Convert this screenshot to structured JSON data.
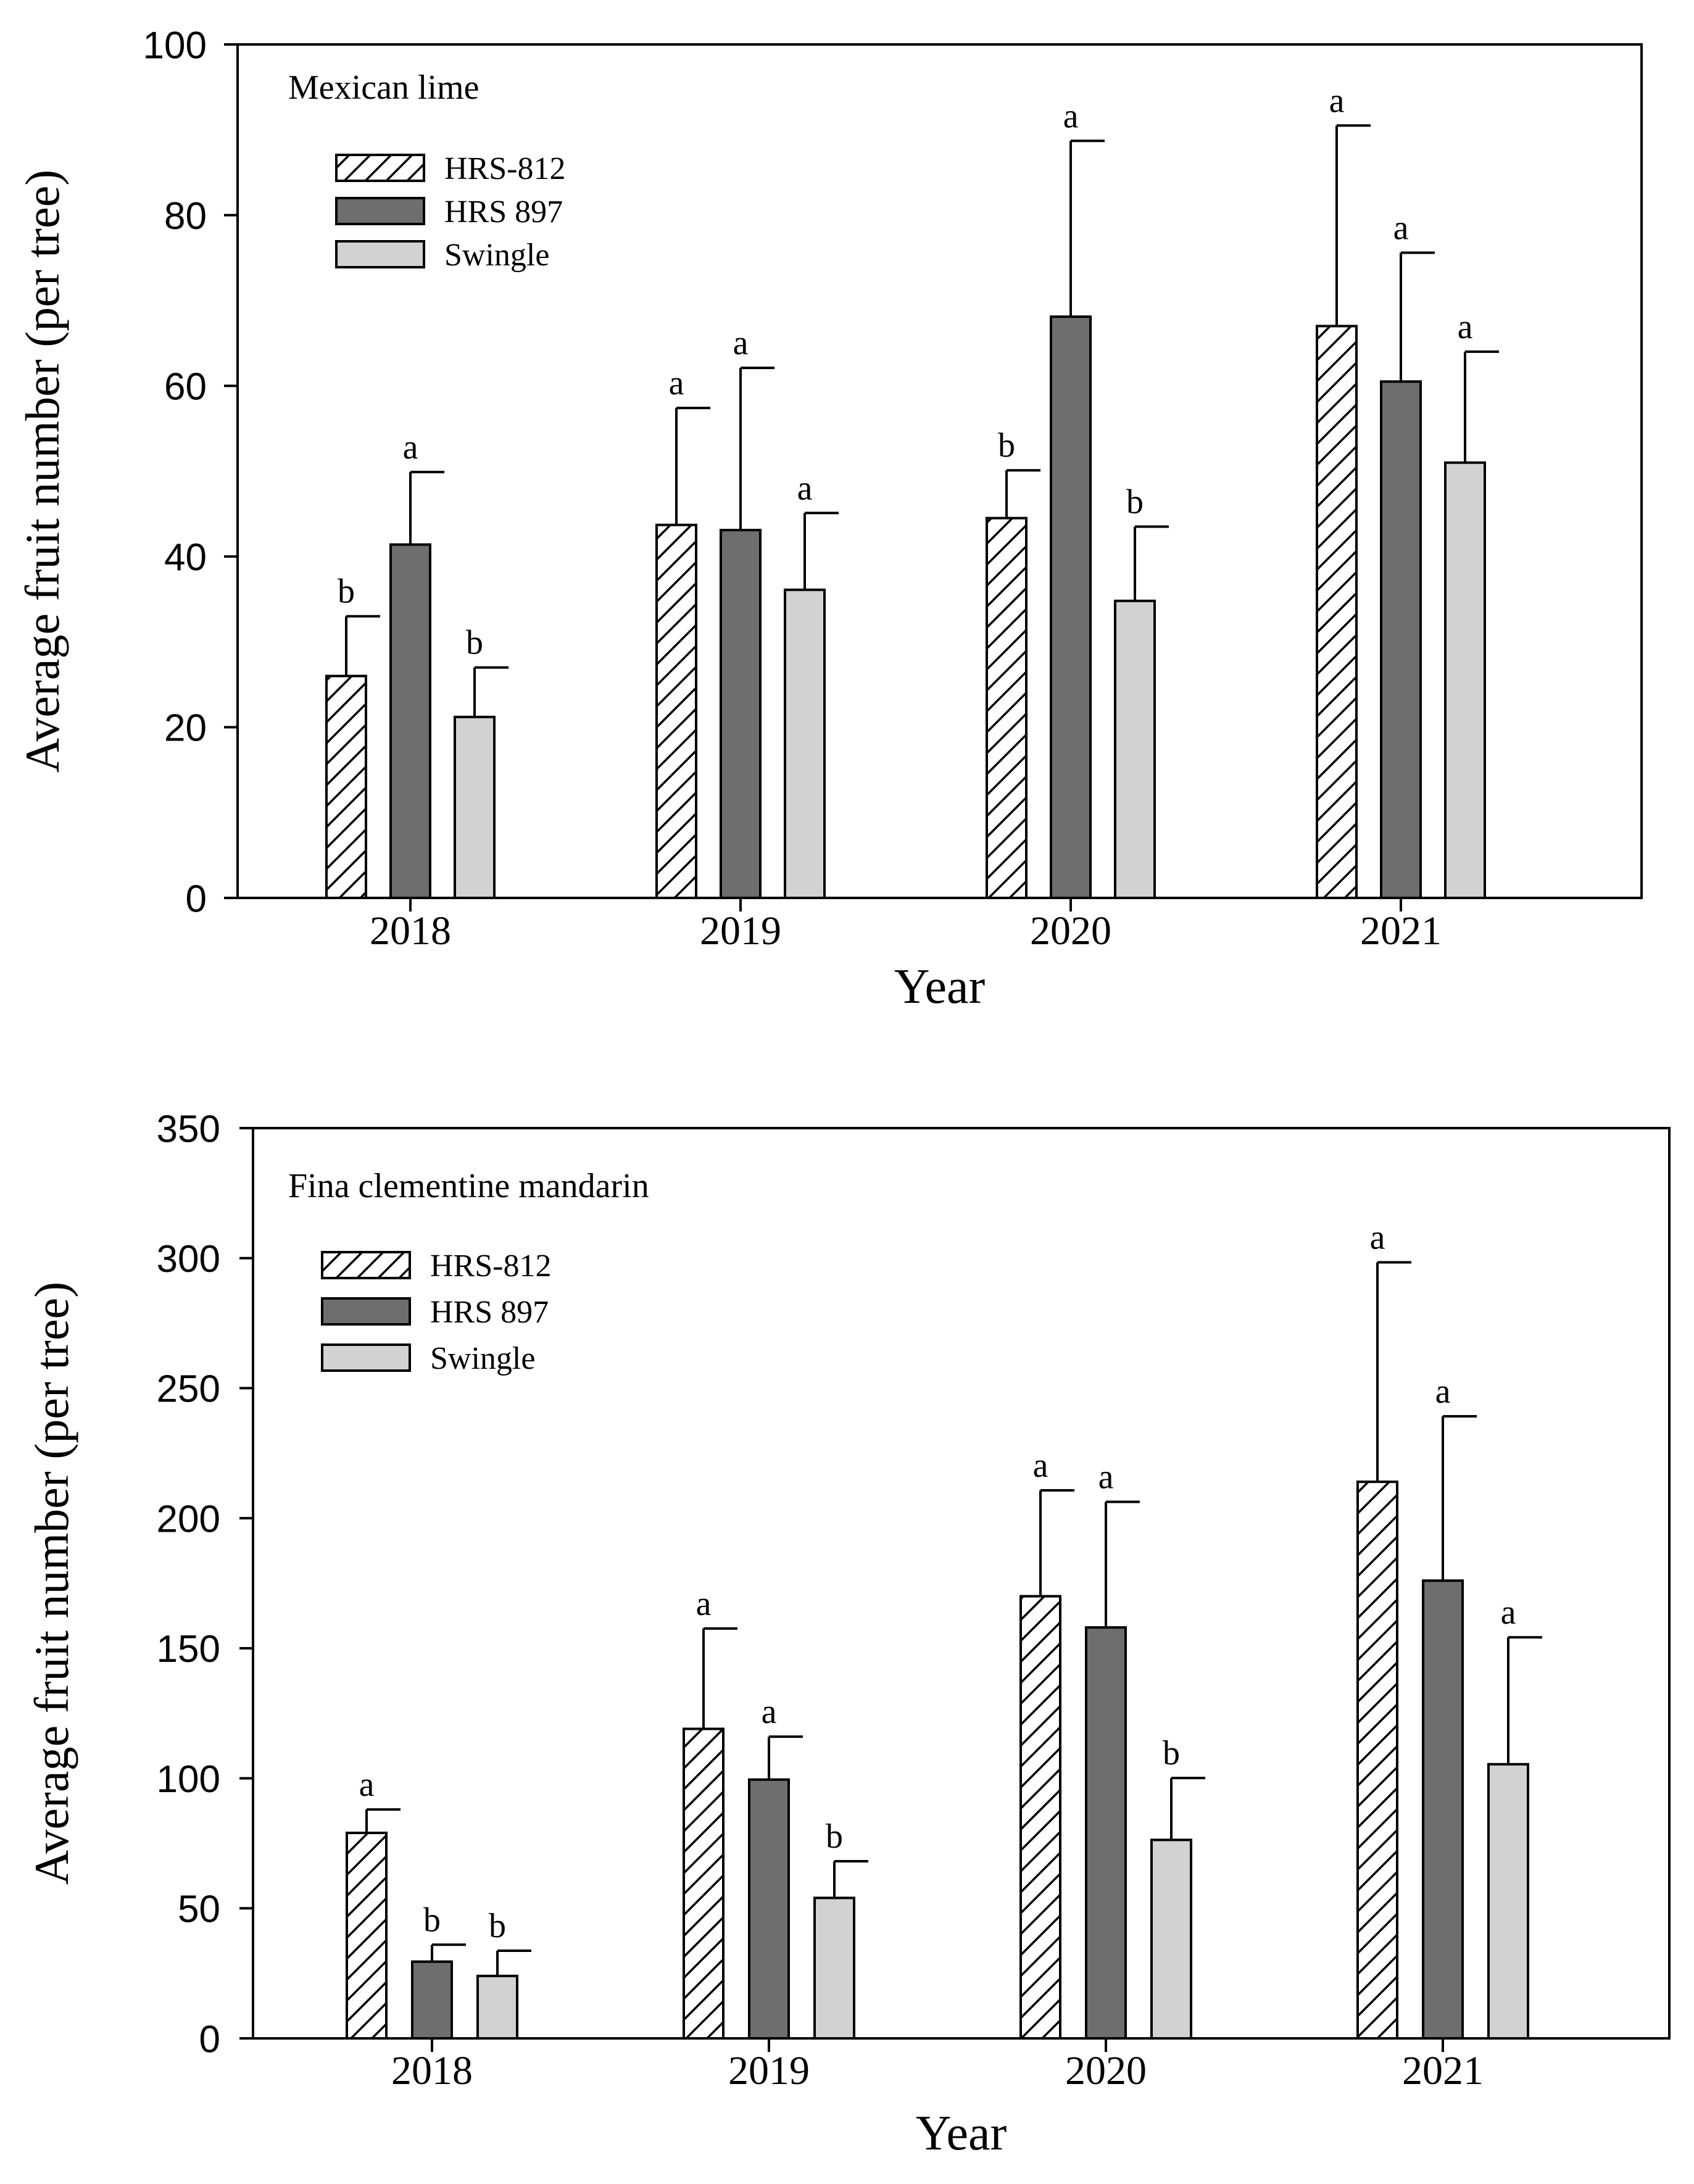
{
  "chart_data": [
    {
      "type": "bar",
      "title": "Mexican lime",
      "xlabel": "Year",
      "ylabel": "Average fruit number (per tree)",
      "categories": [
        "2018",
        "2019",
        "2020",
        "2021"
      ],
      "ylim": [
        0,
        100
      ],
      "yticks": [
        0,
        20,
        40,
        60,
        80,
        100
      ],
      "ytick_labels": [
        "0",
        "20",
        "40",
        "60",
        "80",
        "100"
      ],
      "legend_position": "top-left",
      "series": [
        {
          "name": "HRS-812",
          "style": "hatched",
          "values": [
            26,
            43.7,
            44.5,
            67
          ],
          "errors": [
            7,
            13.7,
            5.6,
            23.5
          ],
          "letters": [
            "b",
            "a",
            "b",
            "a"
          ]
        },
        {
          "name": "HRS 897",
          "style": "dark",
          "values": [
            41.4,
            43.1,
            68.1,
            60.5
          ],
          "errors": [
            8.5,
            19,
            20.6,
            15.1
          ],
          "letters": [
            "a",
            "a",
            "a",
            "a"
          ]
        },
        {
          "name": "Swingle",
          "style": "light",
          "values": [
            21.2,
            36.1,
            34.8,
            51
          ],
          "errors": [
            5.8,
            9,
            8.7,
            13
          ],
          "letters": [
            "b",
            "a",
            "b",
            "a"
          ]
        }
      ],
      "colors": {
        "hatched_fill": "#ffffff",
        "dark_fill": "#6e6e6e",
        "light_fill": "#d2d2d2",
        "line": "#000000"
      }
    },
    {
      "type": "bar",
      "title": "Fina clementine mandarin",
      "xlabel": "Year",
      "ylabel": "Average fruit number (per tree)",
      "categories": [
        "2018",
        "2019",
        "2020",
        "2021"
      ],
      "ylim": [
        0,
        350
      ],
      "yticks": [
        0,
        50,
        100,
        150,
        200,
        250,
        300,
        350
      ],
      "ytick_labels": [
        "0",
        "50",
        "100",
        "150",
        "200",
        "250",
        "300",
        "350"
      ],
      "legend_position": "top-left",
      "series": [
        {
          "name": "HRS-812",
          "style": "hatched",
          "values": [
            79,
            119,
            170,
            214
          ],
          "errors": [
            9,
            38.6,
            40.7,
            84.4
          ],
          "letters": [
            "a",
            "a",
            "a",
            "a"
          ]
        },
        {
          "name": "HRS 897",
          "style": "dark",
          "values": [
            29.5,
            99.5,
            158,
            176
          ],
          "errors": [
            6.5,
            16.5,
            48.3,
            63.2
          ],
          "letters": [
            "b",
            "a",
            "a",
            "a"
          ]
        },
        {
          "name": "Swingle",
          "style": "light",
          "values": [
            24,
            54,
            76.3,
            105.4
          ],
          "errors": [
            9.7,
            14.1,
            23.8,
            48.8
          ],
          "letters": [
            "b",
            "b",
            "b",
            "a"
          ]
        }
      ],
      "colors": {
        "hatched_fill": "#ffffff",
        "dark_fill": "#6e6e6e",
        "light_fill": "#d2d2d2",
        "line": "#000000"
      }
    }
  ]
}
